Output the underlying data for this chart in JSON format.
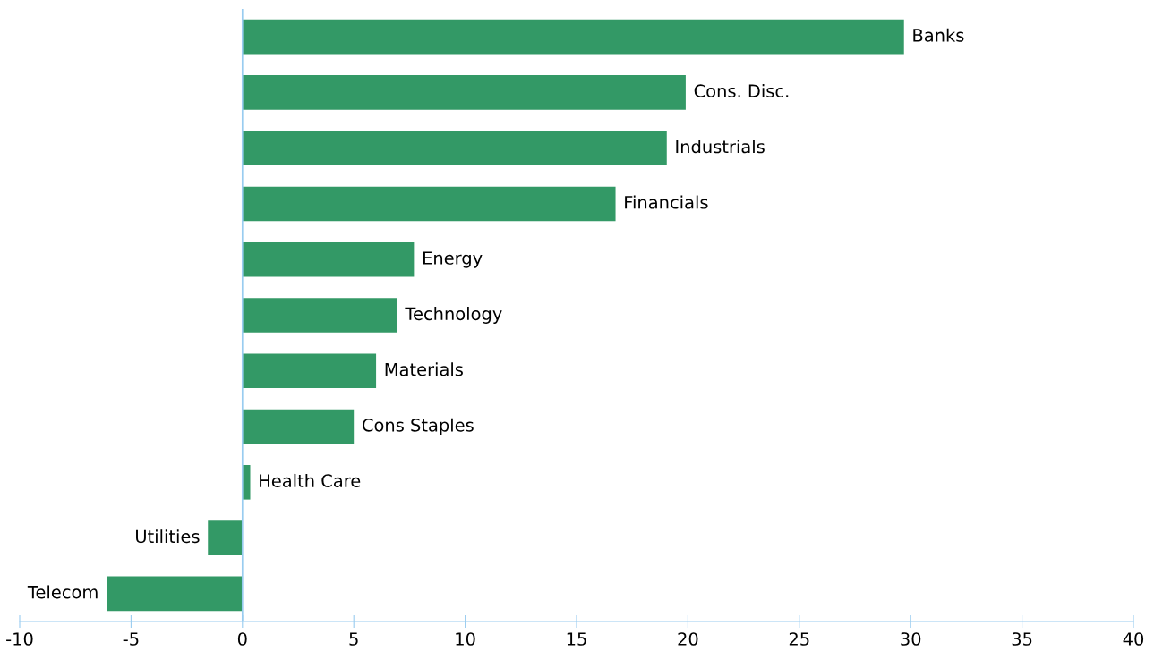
{
  "chart_data": {
    "type": "bar",
    "orientation": "horizontal",
    "categories": [
      "Banks",
      "Cons. Disc.",
      "Industrials",
      "Financials",
      "Energy",
      "Technology",
      "Materials",
      "Cons Staples",
      "Health Care",
      "Utilities",
      "Telecom"
    ],
    "values": [
      29.7,
      19.9,
      19.05,
      16.75,
      7.7,
      6.95,
      6.0,
      5.0,
      0.35,
      -1.55,
      -6.1
    ],
    "color": "#339966",
    "xlim": [
      -10,
      40
    ],
    "xticks": [
      -10,
      -5,
      0,
      5,
      10,
      15,
      20,
      25,
      30,
      35,
      40
    ],
    "ref_lines": [
      {
        "axis": "x",
        "value": 0,
        "color": "#99ccf0"
      }
    ],
    "grid": false,
    "legend": false
  }
}
